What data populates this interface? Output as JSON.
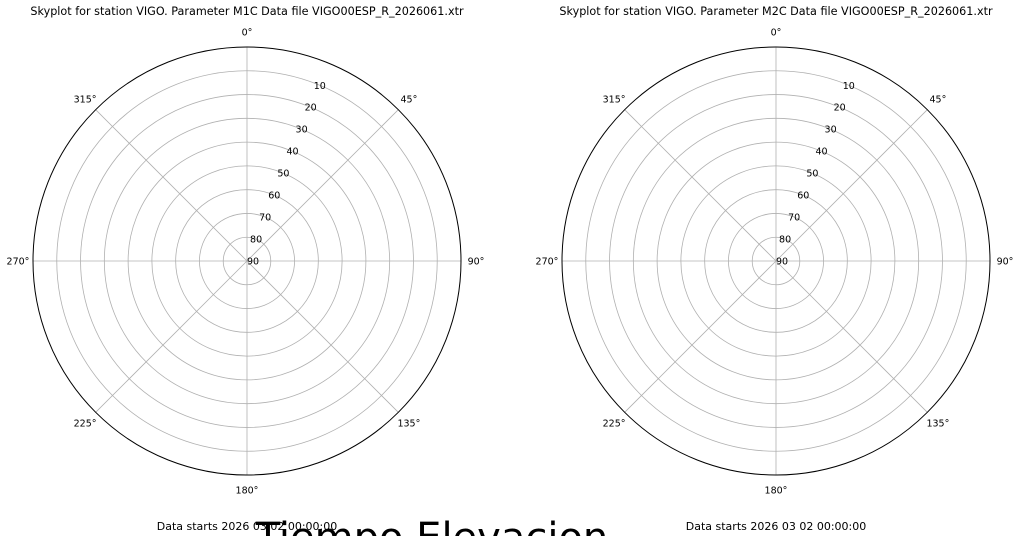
{
  "chart_data": [
    {
      "type": "polar",
      "title": "Skyplot for station VIGO.    Parameter  M1C    Data file VIGO00ESP_R_2026061.xtr",
      "theta_zero": "top",
      "theta_direction": "clockwise",
      "angle_ticks": [
        "0°",
        "45°",
        "90°",
        "135°",
        "180°",
        "225°",
        "270°",
        "315°"
      ],
      "radial_ticks": [
        "10",
        "20",
        "30",
        "40",
        "50",
        "60",
        "70",
        "80",
        "90"
      ],
      "rlim": [
        0,
        90
      ],
      "grid": true,
      "series": [],
      "footer": "Data starts 2026 03 02 00:00:00"
    },
    {
      "type": "polar",
      "title": "Skyplot for station VIGO.    Parameter  M2C    Data file VIGO00ESP_R_2026061.xtr",
      "theta_zero": "top",
      "theta_direction": "clockwise",
      "angle_ticks": [
        "0°",
        "45°",
        "90°",
        "135°",
        "180°",
        "225°",
        "270°",
        "315°"
      ],
      "radial_ticks": [
        "10",
        "20",
        "30",
        "40",
        "50",
        "60",
        "70",
        "80",
        "90"
      ],
      "rlim": [
        0,
        90
      ],
      "grid": true,
      "series": [],
      "footer": "Data starts 2026 03 02 00:00:00"
    }
  ],
  "figure_label": "Tiempo Elevacion",
  "colors": {
    "grid": "#b0b0b0",
    "frame": "#000000",
    "text": "#000000"
  }
}
